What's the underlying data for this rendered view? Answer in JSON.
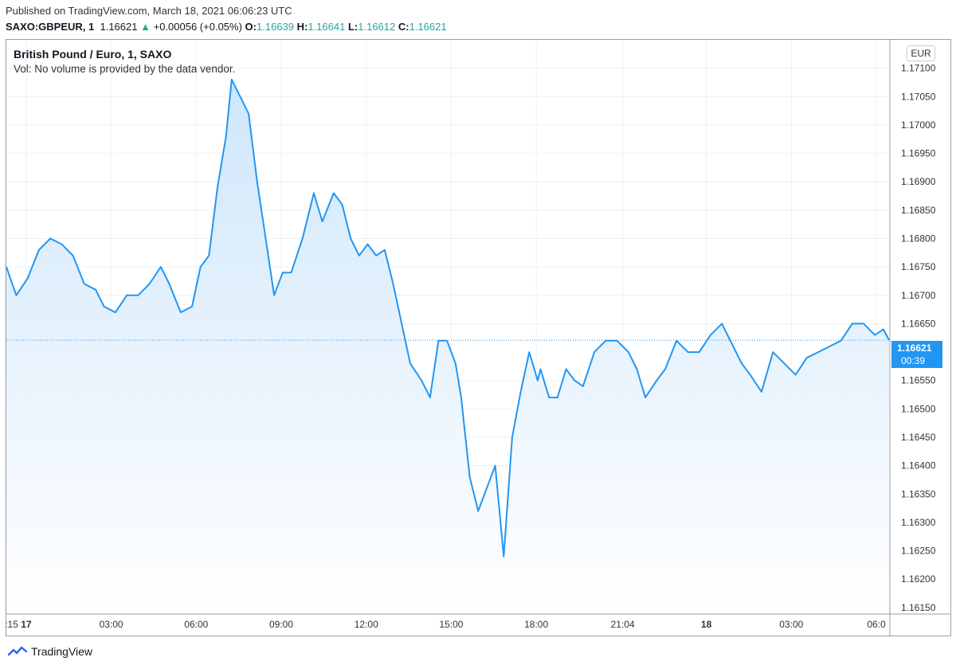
{
  "header": {
    "published": "Published on TradingView.com, March 18, 2021 06:06:23 UTC",
    "symbol": "SAXO:GBPEUR, 1",
    "last": "1.16621",
    "arrow": "▲",
    "change": "+0.00056 (+0.05%)",
    "o_label": "O:",
    "o_value": "1.16639",
    "h_label": "H:",
    "h_value": "1.16641",
    "l_label": "L:",
    "l_value": "1.16612",
    "c_label": "C:",
    "c_value": "1.16621"
  },
  "legend": {
    "title": "British Pound / Euro, 1, SAXO",
    "volume": "Vol: No volume is provided by the data vendor."
  },
  "price_scale": {
    "currency": "EUR",
    "current_price": "1.16621",
    "countdown": "00:39"
  },
  "footer": {
    "brand": "TradingView"
  },
  "colors": {
    "line": "#2196f3",
    "fill_top": "#cfe6fb",
    "fill_bottom": "#ffffff",
    "grid": "#eef0f3",
    "badge": "#2196f3",
    "up": "#26a69a"
  },
  "chart_data": {
    "type": "area",
    "title": "British Pound / Euro, 1, SAXO",
    "xlabel": "",
    "ylabel": "",
    "ylim": [
      1.1614,
      1.1715
    ],
    "grid": true,
    "y_ticks": [
      "1.17100",
      "1.17050",
      "1.17000",
      "1.16950",
      "1.16900",
      "1.16850",
      "1.16800",
      "1.16750",
      "1.16700",
      "1.16650",
      "1.16550",
      "1.16500",
      "1.16450",
      "1.16400",
      "1.16350",
      "1.16300",
      "1.16250",
      "1.16200",
      "1.16150"
    ],
    "y_tick_values": [
      1.171,
      1.1705,
      1.17,
      1.1695,
      1.169,
      1.1685,
      1.168,
      1.1675,
      1.167,
      1.1665,
      1.1655,
      1.165,
      1.1645,
      1.164,
      1.1635,
      1.163,
      1.1625,
      1.162,
      1.1615
    ],
    "x_ticks": [
      {
        "label": ":15",
        "t": 0,
        "bold": false
      },
      {
        "label": "17",
        "t": 0.75,
        "bold": true
      },
      {
        "label": "03:00",
        "t": 3.75,
        "bold": false
      },
      {
        "label": "06:00",
        "t": 6.75,
        "bold": false
      },
      {
        "label": "09:00",
        "t": 9.75,
        "bold": false
      },
      {
        "label": "12:00",
        "t": 12.75,
        "bold": false
      },
      {
        "label": "15:00",
        "t": 15.75,
        "bold": false
      },
      {
        "label": "18:00",
        "t": 18.75,
        "bold": false
      },
      {
        "label": "21:04",
        "t": 21.8,
        "bold": false
      },
      {
        "label": "18",
        "t": 24.75,
        "bold": true
      },
      {
        "label": "03:00",
        "t": 27.75,
        "bold": false
      },
      {
        "label": "06:0",
        "t": 30.75,
        "bold": false
      }
    ],
    "x_range": [
      0.05,
      31.2
    ],
    "series": [
      {
        "t": [
          0.05,
          0.4,
          0.8,
          1.2,
          1.6,
          2.0,
          2.4,
          2.8,
          3.2,
          3.5,
          3.9,
          4.3,
          4.7,
          5.1,
          5.5,
          5.8,
          6.2,
          6.6,
          6.9,
          7.2,
          7.5,
          7.8,
          8.0,
          8.3,
          8.6,
          8.9,
          9.2,
          9.5,
          9.8,
          10.1,
          10.5,
          10.9,
          11.2,
          11.6,
          11.9,
          12.2,
          12.5,
          12.8,
          13.1,
          13.4,
          13.7,
          14.0,
          14.3,
          14.7,
          15.0,
          15.3,
          15.6,
          15.9,
          16.1,
          16.4,
          16.7,
          17.0,
          17.3,
          17.6,
          17.9,
          18.2,
          18.5,
          18.8,
          18.9,
          19.2,
          19.5,
          19.8,
          20.1,
          20.4,
          20.8,
          21.2,
          21.6,
          22.0,
          22.3,
          22.6,
          23.0,
          23.3,
          23.7,
          24.1,
          24.5,
          24.9,
          25.3,
          25.6,
          26.0,
          26.3,
          26.7,
          27.1,
          27.5,
          27.9,
          28.3,
          28.7,
          29.1,
          29.5,
          29.9,
          30.3,
          30.7,
          31.0,
          31.2
        ],
        "close": [
          1.1675,
          1.167,
          1.1673,
          1.1678,
          1.168,
          1.1679,
          1.1677,
          1.1672,
          1.1671,
          1.1668,
          1.1667,
          1.167,
          1.167,
          1.1672,
          1.1675,
          1.1672,
          1.1667,
          1.1668,
          1.1675,
          1.1677,
          1.1689,
          1.1698,
          1.1708,
          1.1705,
          1.1702,
          1.169,
          1.168,
          1.167,
          1.1674,
          1.1674,
          1.168,
          1.1688,
          1.1683,
          1.1688,
          1.1686,
          1.168,
          1.1677,
          1.1679,
          1.1677,
          1.1678,
          1.1672,
          1.1665,
          1.1658,
          1.1655,
          1.1652,
          1.1662,
          1.1662,
          1.1658,
          1.1652,
          1.1638,
          1.1632,
          1.1636,
          1.164,
          1.1624,
          1.1645,
          1.1653,
          1.166,
          1.1655,
          1.1657,
          1.1652,
          1.1652,
          1.1657,
          1.1655,
          1.1654,
          1.166,
          1.1662,
          1.1662,
          1.166,
          1.1657,
          1.1652,
          1.1655,
          1.1657,
          1.1662,
          1.166,
          1.166,
          1.1663,
          1.1665,
          1.1662,
          1.1658,
          1.1656,
          1.1653,
          1.166,
          1.1658,
          1.1656,
          1.1659,
          1.166,
          1.1661,
          1.1662,
          1.1665,
          1.1665,
          1.1663,
          1.1664,
          1.16621
        ]
      }
    ],
    "current_value": 1.16621
  }
}
